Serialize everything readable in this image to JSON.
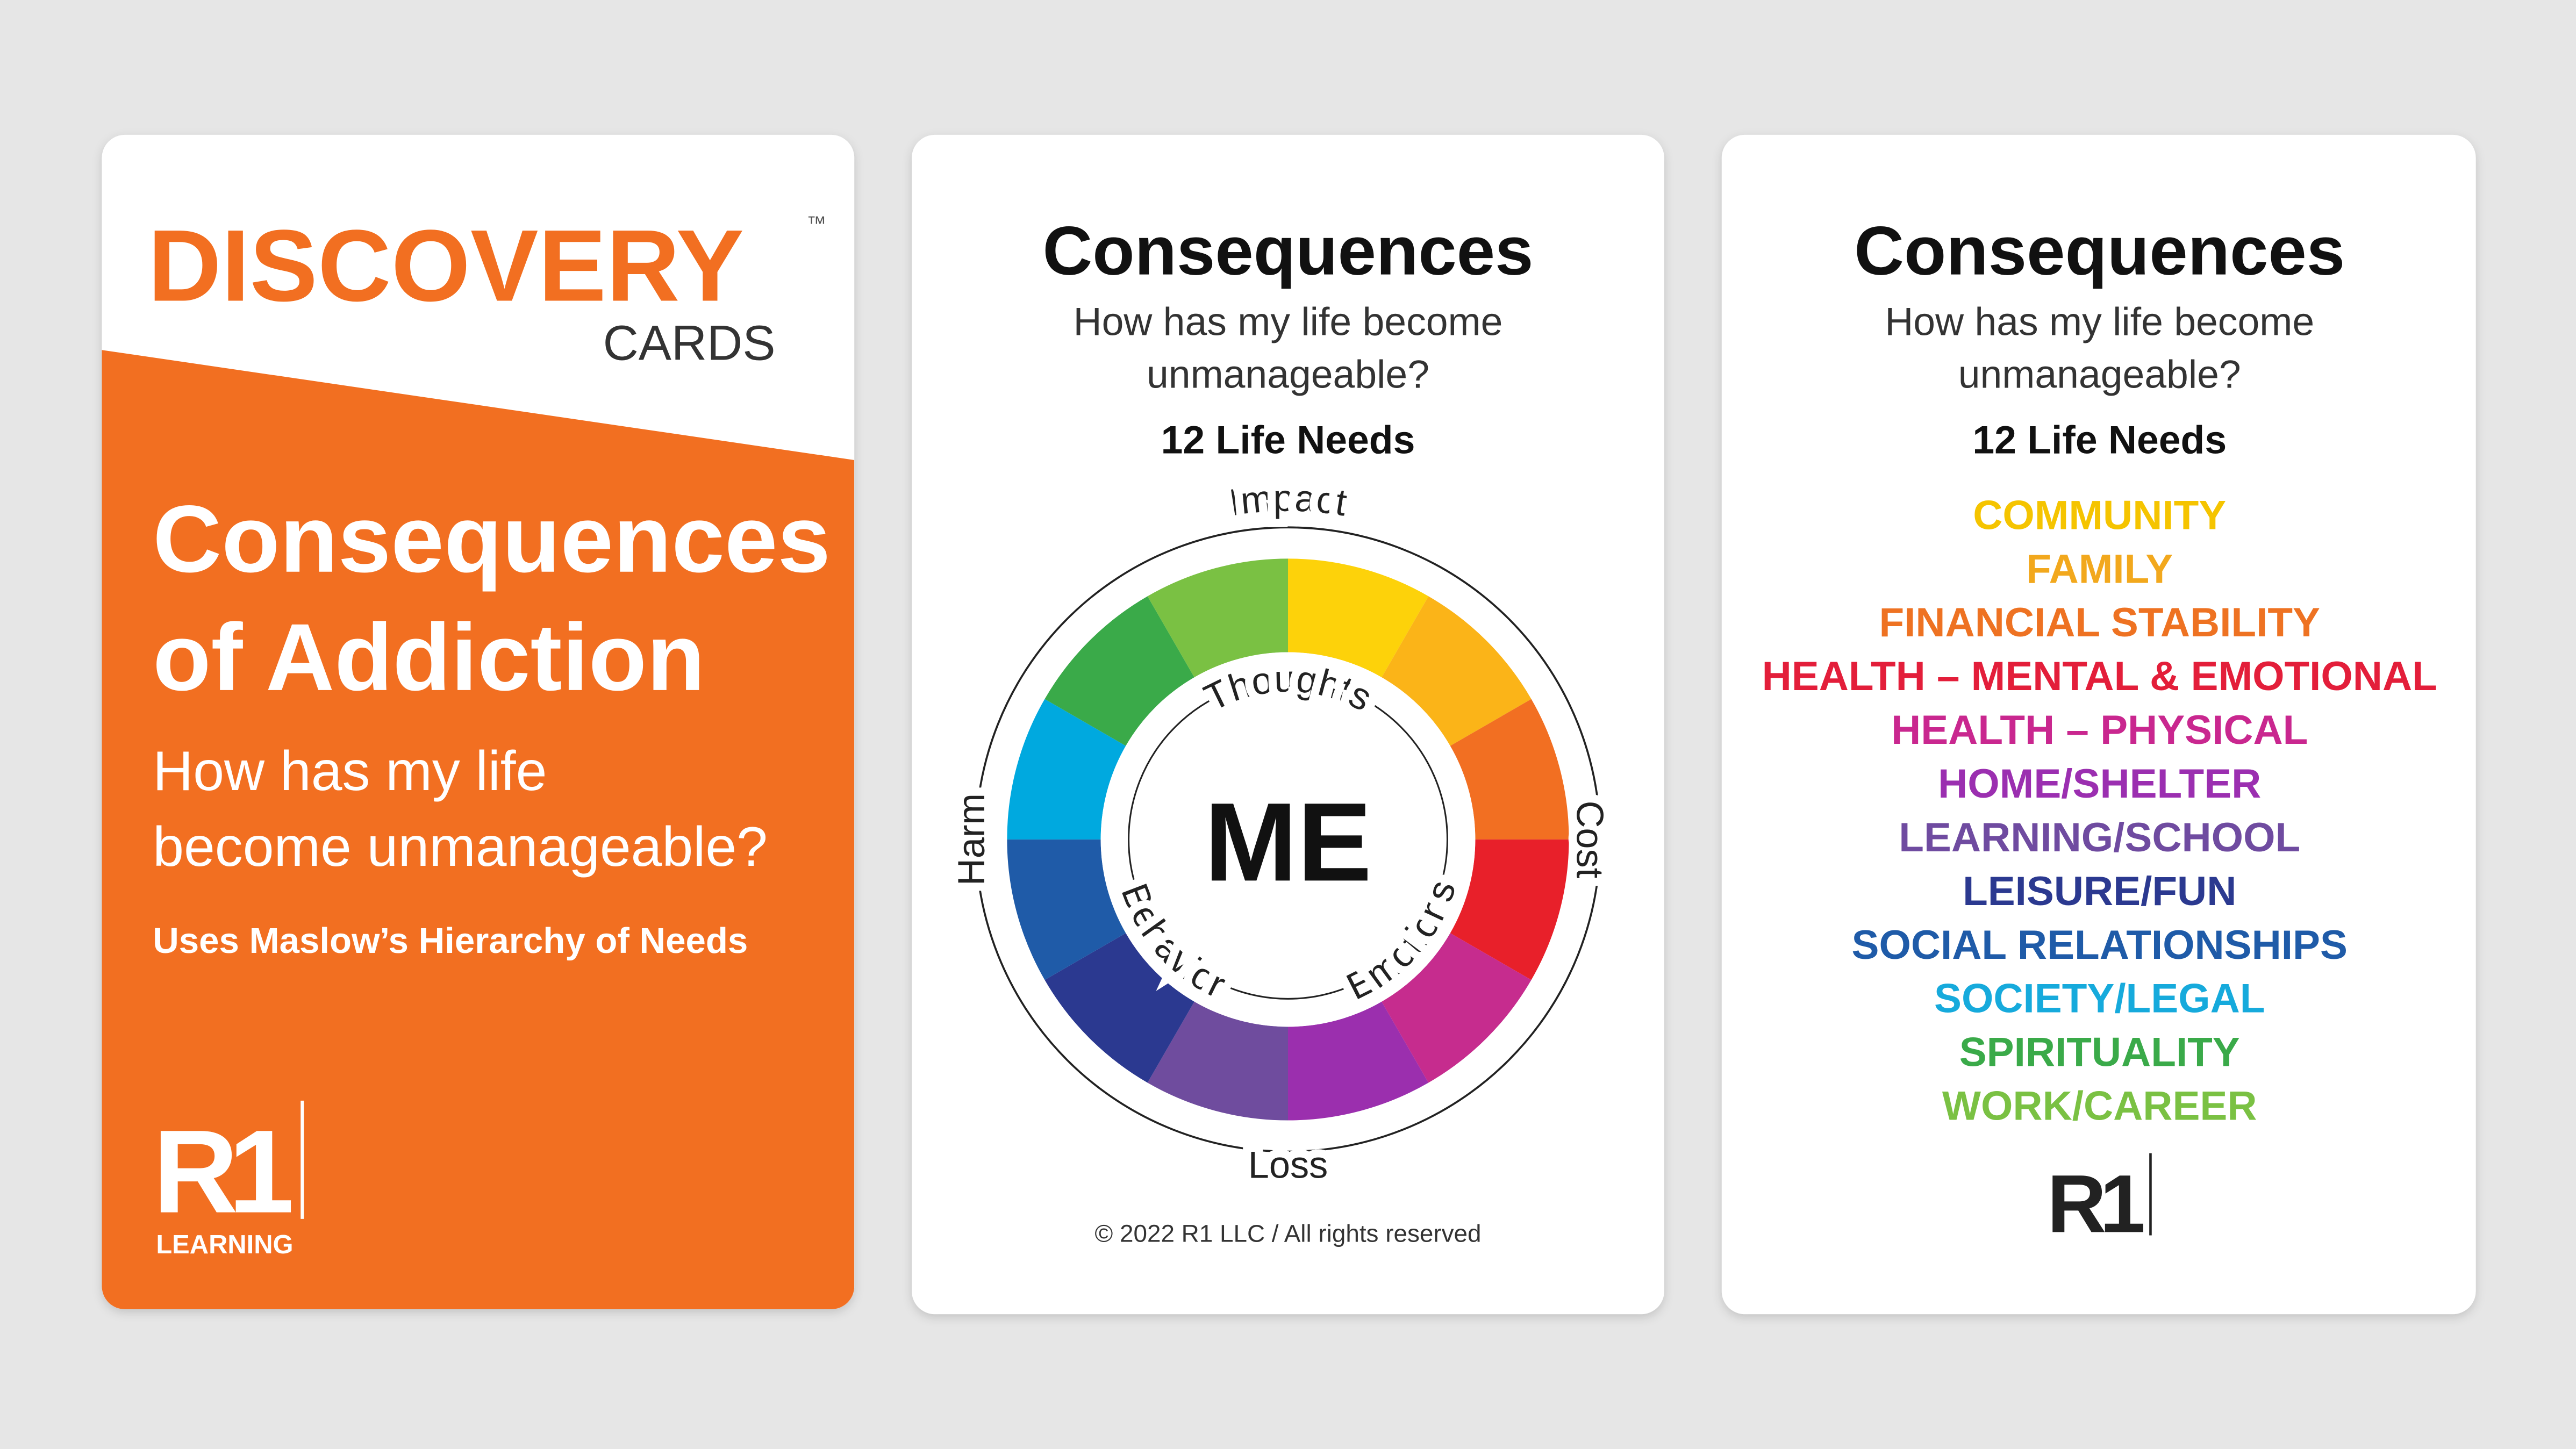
{
  "cards": [
    {
      "brand": "DISCOVERY",
      "trademark": "™",
      "brand_sub": "CARDS",
      "title": [
        "Consequences",
        "of Addiction"
      ],
      "subtitle": [
        "How has my life",
        "become unmanageable?"
      ],
      "note": "Uses Maslow’s Hierarchy of Needs",
      "logo": "R1",
      "logo_sub": "LEARNING"
    },
    {
      "title": "Consequences",
      "question": [
        "How has my life become",
        "unmanageable?"
      ],
      "heading": "12 Life Needs",
      "wheel": {
        "center": "ME",
        "outer": [
          "Impact",
          "Cost",
          "Loss",
          "Harm"
        ],
        "inner": [
          "Thoughts",
          "Emotions",
          "Behavior"
        ]
      },
      "copyright": "© 2022 R1 LLC / All rights reserved"
    },
    {
      "title": "Consequences",
      "question": [
        "How has my life become",
        "unmanageable?"
      ],
      "heading": "12 Life Needs",
      "needs": [
        {
          "label": "COMMUNITY",
          "color": "#f5c400"
        },
        {
          "label": "FAMILY",
          "color": "#f2a81d"
        },
        {
          "label": "FINANCIAL STABILITY",
          "color": "#ee7222"
        },
        {
          "label": "HEALTH – MENTAL & EMOTIONAL",
          "color": "#e31e3a"
        },
        {
          "label": "HEALTH – PHYSICAL",
          "color": "#c9278f"
        },
        {
          "label": "HOME/SHELTER",
          "color": "#9b2fb0"
        },
        {
          "label": "LEARNING/SCHOOL",
          "color": "#6f4ba0"
        },
        {
          "label": "LEISURE/FUN",
          "color": "#2b3990"
        },
        {
          "label": "SOCIAL RELATIONSHIPS",
          "color": "#1f5ba8"
        },
        {
          "label": "SOCIETY/LEGAL",
          "color": "#16aadc"
        },
        {
          "label": "SPIRITUALITY",
          "color": "#3aaa49"
        },
        {
          "label": "WORK/CAREER",
          "color": "#7ac143"
        }
      ],
      "logo": "R1"
    }
  ]
}
